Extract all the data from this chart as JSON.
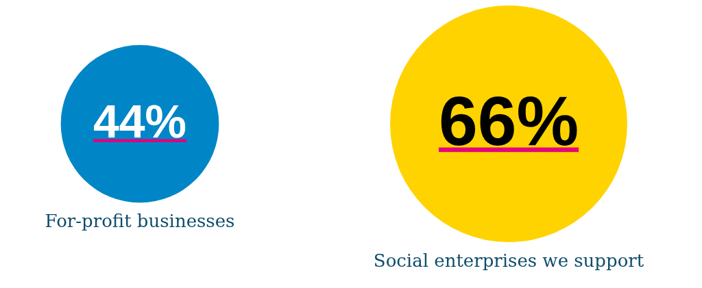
{
  "chart_data": {
    "type": "other",
    "categories": [
      "For-profit businesses",
      "Social enterprises we support"
    ],
    "values": [
      44,
      66
    ],
    "colors": [
      "#0086c6",
      "#ffd300"
    ],
    "value_labels": [
      "44%",
      "66%"
    ]
  }
}
